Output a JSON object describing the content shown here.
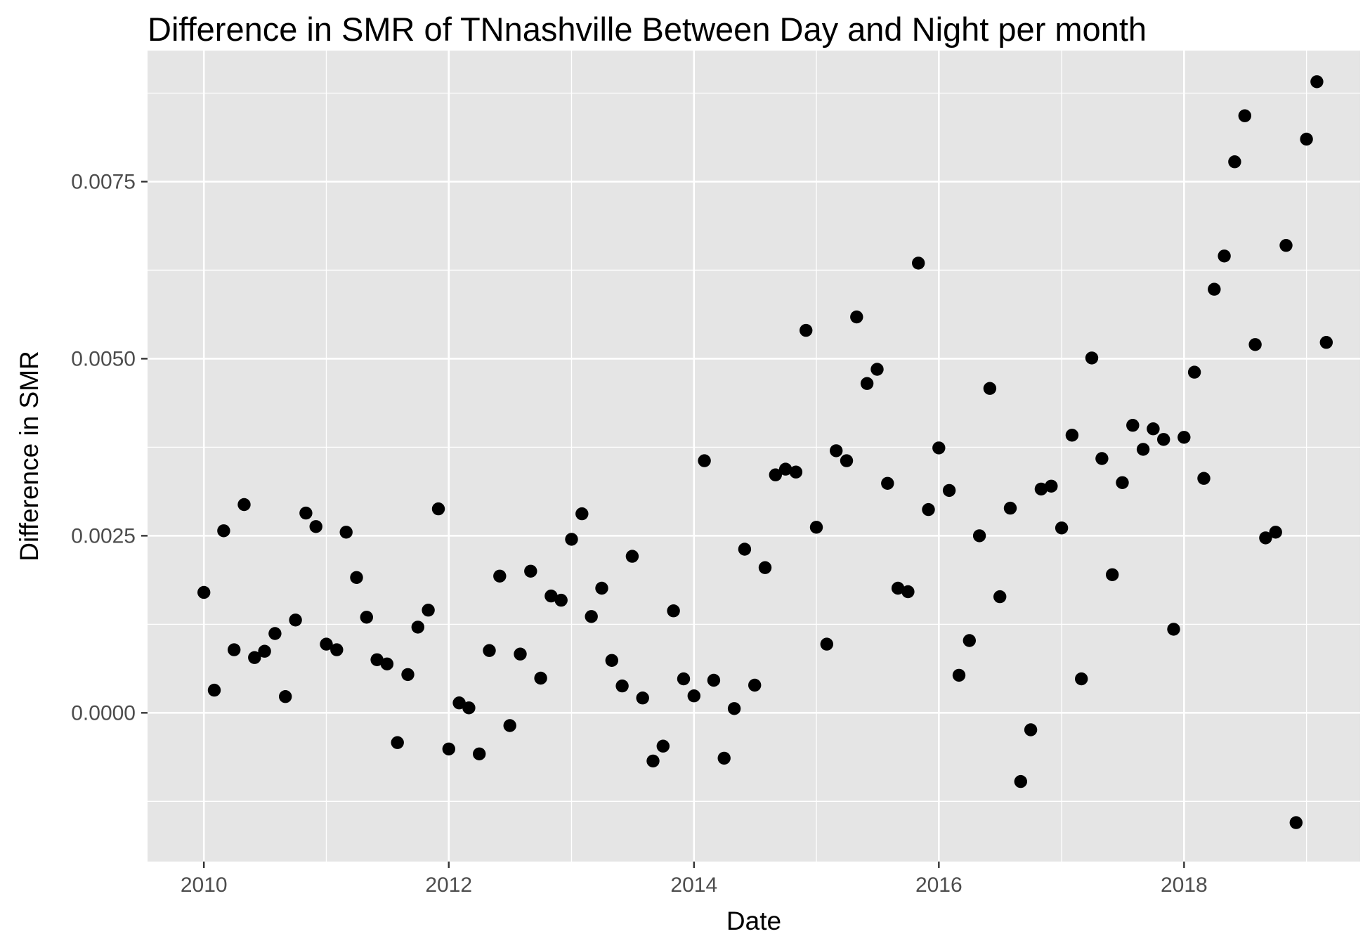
{
  "chart_data": {
    "type": "scatter",
    "title": "Difference in SMR of TNnashville Between Day and Night per month",
    "xlabel": "Date",
    "ylabel": "Difference in SMR",
    "x_axis": {
      "scale": "date",
      "range": [
        "2009-07-17",
        "2019-06-10"
      ],
      "ticks": [
        {
          "value": "2010-01-01",
          "label": "2010"
        },
        {
          "value": "2012-01-01",
          "label": "2012"
        },
        {
          "value": "2014-01-01",
          "label": "2014"
        },
        {
          "value": "2016-01-01",
          "label": "2016"
        },
        {
          "value": "2018-01-01",
          "label": "2018"
        }
      ]
    },
    "y_axis": {
      "range": [
        -0.0021,
        0.00935
      ],
      "ticks": [
        {
          "value": 0.0,
          "label": "0.0000"
        },
        {
          "value": 0.0025,
          "label": "0.0025"
        },
        {
          "value": 0.005,
          "label": "0.0050"
        },
        {
          "value": 0.0075,
          "label": "0.0075"
        }
      ]
    },
    "grid": true,
    "colors": {
      "panel_background": "#e5e5e5",
      "grid_line": "#ffffff",
      "point": "#000000",
      "tick_label": "#4d4d4d",
      "tick_mark": "#333333"
    },
    "series": [
      {
        "points": [
          {
            "x": "2010-01-01",
            "y": 0.0017
          },
          {
            "x": "2010-02-01",
            "y": 0.00032
          },
          {
            "x": "2010-03-01",
            "y": 0.00257
          },
          {
            "x": "2010-04-01",
            "y": 0.00089
          },
          {
            "x": "2010-05-01",
            "y": 0.00294
          },
          {
            "x": "2010-06-01",
            "y": 0.00078
          },
          {
            "x": "2010-07-01",
            "y": 0.00087
          },
          {
            "x": "2010-08-01",
            "y": 0.00112
          },
          {
            "x": "2010-09-01",
            "y": 0.00023
          },
          {
            "x": "2010-10-01",
            "y": 0.00131
          },
          {
            "x": "2010-11-01",
            "y": 0.00282
          },
          {
            "x": "2010-12-01",
            "y": 0.00263
          },
          {
            "x": "2011-01-01",
            "y": 0.00097
          },
          {
            "x": "2011-02-01",
            "y": 0.00089
          },
          {
            "x": "2011-03-01",
            "y": 0.00255
          },
          {
            "x": "2011-04-01",
            "y": 0.00191
          },
          {
            "x": "2011-05-01",
            "y": 0.00135
          },
          {
            "x": "2011-06-01",
            "y": 0.00075
          },
          {
            "x": "2011-07-01",
            "y": 0.00069
          },
          {
            "x": "2011-08-01",
            "y": -0.00042
          },
          {
            "x": "2011-09-01",
            "y": 0.00054
          },
          {
            "x": "2011-10-01",
            "y": 0.00121
          },
          {
            "x": "2011-11-01",
            "y": 0.00145
          },
          {
            "x": "2011-12-01",
            "y": 0.00288
          },
          {
            "x": "2012-01-01",
            "y": -0.00051
          },
          {
            "x": "2012-02-01",
            "y": 0.00014
          },
          {
            "x": "2012-03-01",
            "y": 7e-05
          },
          {
            "x": "2012-04-01",
            "y": -0.00058
          },
          {
            "x": "2012-05-01",
            "y": 0.00088
          },
          {
            "x": "2012-06-01",
            "y": 0.00193
          },
          {
            "x": "2012-07-01",
            "y": -0.00018
          },
          {
            "x": "2012-08-01",
            "y": 0.00083
          },
          {
            "x": "2012-09-01",
            "y": 0.002
          },
          {
            "x": "2012-10-01",
            "y": 0.00049
          },
          {
            "x": "2012-11-01",
            "y": 0.00165
          },
          {
            "x": "2012-12-01",
            "y": 0.00159
          },
          {
            "x": "2013-01-01",
            "y": 0.00245
          },
          {
            "x": "2013-02-01",
            "y": 0.00281
          },
          {
            "x": "2013-03-01",
            "y": 0.00136
          },
          {
            "x": "2013-04-01",
            "y": 0.00176
          },
          {
            "x": "2013-05-01",
            "y": 0.00074
          },
          {
            "x": "2013-06-01",
            "y": 0.00038
          },
          {
            "x": "2013-07-01",
            "y": 0.00221
          },
          {
            "x": "2013-08-01",
            "y": 0.00021
          },
          {
            "x": "2013-09-01",
            "y": -0.00068
          },
          {
            "x": "2013-10-01",
            "y": -0.00047
          },
          {
            "x": "2013-11-01",
            "y": 0.00144
          },
          {
            "x": "2013-12-01",
            "y": 0.00048
          },
          {
            "x": "2014-01-01",
            "y": 0.00024
          },
          {
            "x": "2014-02-01",
            "y": 0.00356
          },
          {
            "x": "2014-03-01",
            "y": 0.00046
          },
          {
            "x": "2014-04-01",
            "y": -0.00064
          },
          {
            "x": "2014-05-01",
            "y": 6e-05
          },
          {
            "x": "2014-06-01",
            "y": 0.00231
          },
          {
            "x": "2014-07-01",
            "y": 0.00039
          },
          {
            "x": "2014-08-01",
            "y": 0.00205
          },
          {
            "x": "2014-09-01",
            "y": 0.00336
          },
          {
            "x": "2014-10-01",
            "y": 0.00344
          },
          {
            "x": "2014-11-01",
            "y": 0.0034
          },
          {
            "x": "2014-12-01",
            "y": 0.0054
          },
          {
            "x": "2015-01-01",
            "y": 0.00262
          },
          {
            "x": "2015-02-01",
            "y": 0.00097
          },
          {
            "x": "2015-03-01",
            "y": 0.0037
          },
          {
            "x": "2015-04-01",
            "y": 0.00356
          },
          {
            "x": "2015-05-01",
            "y": 0.00559
          },
          {
            "x": "2015-06-01",
            "y": 0.00465
          },
          {
            "x": "2015-07-01",
            "y": 0.00485
          },
          {
            "x": "2015-08-01",
            "y": 0.00324
          },
          {
            "x": "2015-09-01",
            "y": 0.00176
          },
          {
            "x": "2015-10-01",
            "y": 0.00171
          },
          {
            "x": "2015-11-01",
            "y": 0.00635
          },
          {
            "x": "2015-12-01",
            "y": 0.00287
          },
          {
            "x": "2016-01-01",
            "y": 0.00374
          },
          {
            "x": "2016-02-01",
            "y": 0.00314
          },
          {
            "x": "2016-03-01",
            "y": 0.00053
          },
          {
            "x": "2016-04-01",
            "y": 0.00102
          },
          {
            "x": "2016-05-01",
            "y": 0.0025
          },
          {
            "x": "2016-06-01",
            "y": 0.00458
          },
          {
            "x": "2016-07-01",
            "y": 0.00164
          },
          {
            "x": "2016-08-01",
            "y": 0.00289
          },
          {
            "x": "2016-09-01",
            "y": -0.00097
          },
          {
            "x": "2016-10-01",
            "y": -0.00024
          },
          {
            "x": "2016-11-01",
            "y": 0.00316
          },
          {
            "x": "2016-12-01",
            "y": 0.0032
          },
          {
            "x": "2017-01-01",
            "y": 0.00261
          },
          {
            "x": "2017-02-01",
            "y": 0.00392
          },
          {
            "x": "2017-03-01",
            "y": 0.00048
          },
          {
            "x": "2017-04-01",
            "y": 0.00501
          },
          {
            "x": "2017-05-01",
            "y": 0.00359
          },
          {
            "x": "2017-06-01",
            "y": 0.00195
          },
          {
            "x": "2017-07-01",
            "y": 0.00325
          },
          {
            "x": "2017-08-01",
            "y": 0.00406
          },
          {
            "x": "2017-09-01",
            "y": 0.00372
          },
          {
            "x": "2017-10-01",
            "y": 0.00401
          },
          {
            "x": "2017-11-01",
            "y": 0.00386
          },
          {
            "x": "2017-12-01",
            "y": 0.00118
          },
          {
            "x": "2018-01-01",
            "y": 0.00389
          },
          {
            "x": "2018-02-01",
            "y": 0.00481
          },
          {
            "x": "2018-03-01",
            "y": 0.00331
          },
          {
            "x": "2018-04-01",
            "y": 0.00598
          },
          {
            "x": "2018-05-01",
            "y": 0.00645
          },
          {
            "x": "2018-06-01",
            "y": 0.00778
          },
          {
            "x": "2018-07-01",
            "y": 0.00843
          },
          {
            "x": "2018-08-01",
            "y": 0.0052
          },
          {
            "x": "2018-09-01",
            "y": 0.00247
          },
          {
            "x": "2018-10-01",
            "y": 0.00255
          },
          {
            "x": "2018-11-01",
            "y": 0.0066
          },
          {
            "x": "2018-12-01",
            "y": -0.00155
          },
          {
            "x": "2019-01-01",
            "y": 0.0081
          },
          {
            "x": "2019-02-01",
            "y": 0.00891
          },
          {
            "x": "2019-03-01",
            "y": 0.00523
          }
        ]
      }
    ]
  }
}
